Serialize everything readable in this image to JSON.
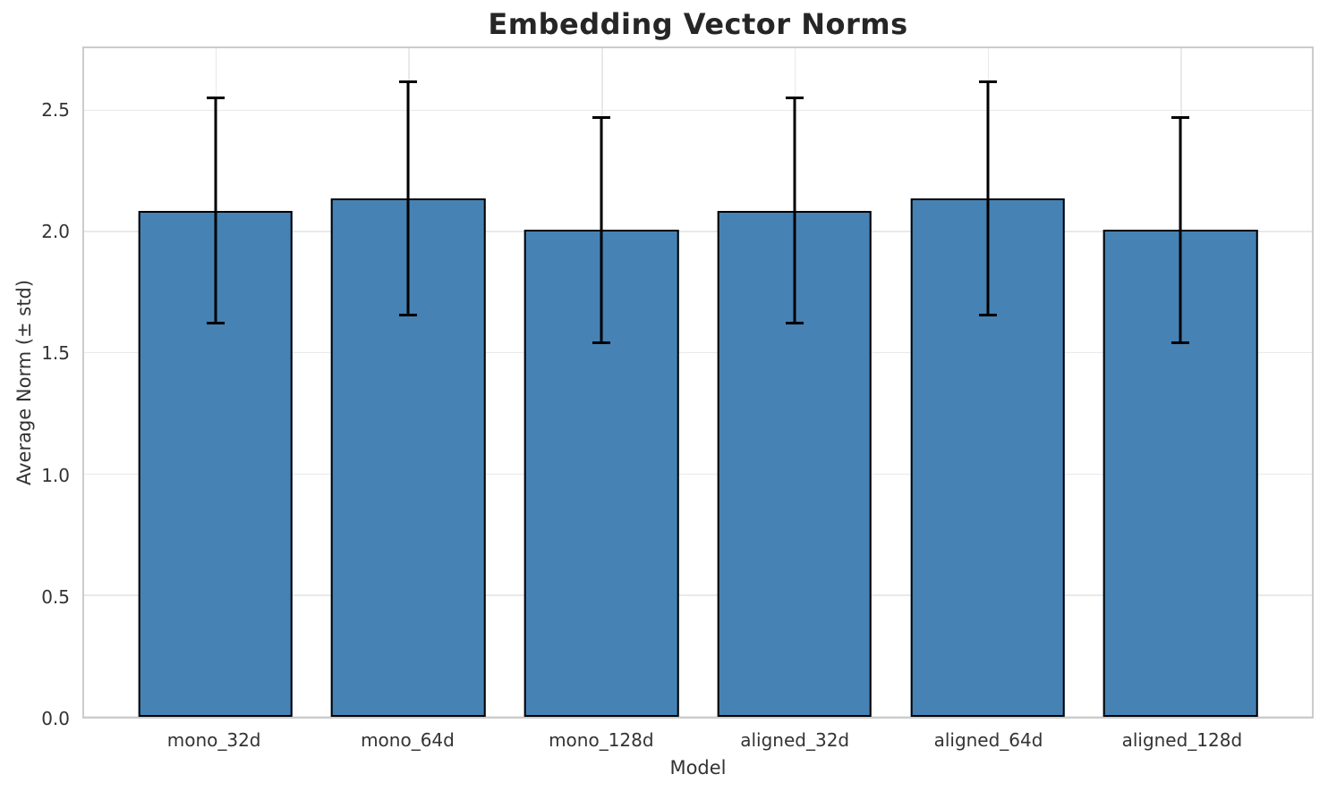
{
  "colors": {
    "background": "#ffffff",
    "bar_fill": "#4682b4",
    "bar_edge": "#000000",
    "error_bar": "#000000",
    "grid": "#e9e9e9",
    "spine": "#cccccc",
    "title_text": "#262626",
    "label_text": "#333333"
  },
  "chart_data": {
    "type": "bar",
    "title": "Embedding Vector Norms",
    "xlabel": "Model",
    "ylabel": "Average Norm (± std)",
    "categories": [
      "mono_32d",
      "mono_64d",
      "mono_128d",
      "aligned_32d",
      "aligned_64d",
      "aligned_128d"
    ],
    "values": [
      2.09,
      2.14,
      2.01,
      2.09,
      2.14,
      2.01
    ],
    "error_std": [
      0.465,
      0.48,
      0.465,
      0.465,
      0.48,
      0.465
    ],
    "error_upper": [
      2.555,
      2.62,
      2.475,
      2.555,
      2.62,
      2.475
    ],
    "error_lower": [
      1.625,
      1.66,
      1.545,
      1.625,
      1.66,
      1.545
    ],
    "ylim": [
      0,
      2.76
    ],
    "ytick_labels": [
      "0.0",
      "0.5",
      "1.0",
      "1.5",
      "2.0",
      "2.5"
    ],
    "grid": true,
    "legend_position": "none",
    "bar_width_fraction": 0.8
  }
}
